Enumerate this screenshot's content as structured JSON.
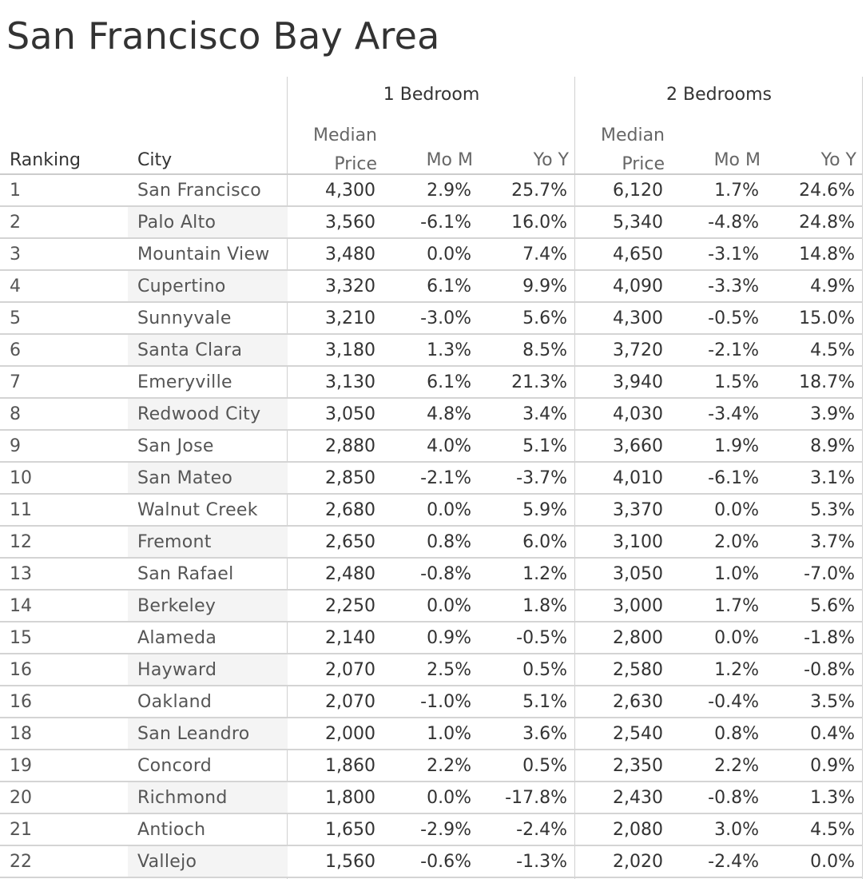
{
  "title": "San Francisco Bay Area",
  "headers": {
    "ranking": "Ranking",
    "city": "City",
    "group1": "1 Bedroom",
    "group2": "2 Bedrooms",
    "median_top": "Median",
    "median_bottom": "Price",
    "mom": "Mo M",
    "yoy": "Yo Y"
  },
  "chart_data": {
    "type": "table",
    "title": "San Francisco Bay Area",
    "columns": [
      "Ranking",
      "City",
      "1 Bedroom Median Price",
      "1 Bedroom Mo M",
      "1 Bedroom Yo Y",
      "2 Bedrooms Median Price",
      "2 Bedrooms Mo M",
      "2 Bedrooms Yo Y"
    ],
    "rows": [
      [
        "1",
        "San Francisco",
        "4,300",
        "2.9%",
        "25.7%",
        "6,120",
        "1.7%",
        "24.6%"
      ],
      [
        "2",
        "Palo Alto",
        "3,560",
        "-6.1%",
        "16.0%",
        "5,340",
        "-4.8%",
        "24.8%"
      ],
      [
        "3",
        "Mountain View",
        "3,480",
        "0.0%",
        "7.4%",
        "4,650",
        "-3.1%",
        "14.8%"
      ],
      [
        "4",
        "Cupertino",
        "3,320",
        "6.1%",
        "9.9%",
        "4,090",
        "-3.3%",
        "4.9%"
      ],
      [
        "5",
        "Sunnyvale",
        "3,210",
        "-3.0%",
        "5.6%",
        "4,300",
        "-0.5%",
        "15.0%"
      ],
      [
        "6",
        "Santa Clara",
        "3,180",
        "1.3%",
        "8.5%",
        "3,720",
        "-2.1%",
        "4.5%"
      ],
      [
        "7",
        "Emeryville",
        "3,130",
        "6.1%",
        "21.3%",
        "3,940",
        "1.5%",
        "18.7%"
      ],
      [
        "8",
        "Redwood City",
        "3,050",
        "4.8%",
        "3.4%",
        "4,030",
        "-3.4%",
        "3.9%"
      ],
      [
        "9",
        "San Jose",
        "2,880",
        "4.0%",
        "5.1%",
        "3,660",
        "1.9%",
        "8.9%"
      ],
      [
        "10",
        "San Mateo",
        "2,850",
        "-2.1%",
        "-3.7%",
        "4,010",
        "-6.1%",
        "3.1%"
      ],
      [
        "11",
        "Walnut Creek",
        "2,680",
        "0.0%",
        "5.9%",
        "3,370",
        "0.0%",
        "5.3%"
      ],
      [
        "12",
        "Fremont",
        "2,650",
        "0.8%",
        "6.0%",
        "3,100",
        "2.0%",
        "3.7%"
      ],
      [
        "13",
        "San Rafael",
        "2,480",
        "-0.8%",
        "1.2%",
        "3,050",
        "1.0%",
        "-7.0%"
      ],
      [
        "14",
        "Berkeley",
        "2,250",
        "0.0%",
        "1.8%",
        "3,000",
        "1.7%",
        "5.6%"
      ],
      [
        "15",
        "Alameda",
        "2,140",
        "0.9%",
        "-0.5%",
        "2,800",
        "0.0%",
        "-1.8%"
      ],
      [
        "16",
        "Hayward",
        "2,070",
        "2.5%",
        "0.5%",
        "2,580",
        "1.2%",
        "-0.8%"
      ],
      [
        "16",
        "Oakland",
        "2,070",
        "-1.0%",
        "5.1%",
        "2,630",
        "-0.4%",
        "3.5%"
      ],
      [
        "18",
        "San Leandro",
        "2,000",
        "1.0%",
        "3.6%",
        "2,540",
        "0.8%",
        "0.4%"
      ],
      [
        "19",
        "Concord",
        "1,860",
        "2.2%",
        "0.5%",
        "2,350",
        "2.2%",
        "0.9%"
      ],
      [
        "20",
        "Richmond",
        "1,800",
        "0.0%",
        "-17.8%",
        "2,430",
        "-0.8%",
        "1.3%"
      ],
      [
        "21",
        "Antioch",
        "1,650",
        "-2.9%",
        "-2.4%",
        "2,080",
        "3.0%",
        "4.5%"
      ],
      [
        "22",
        "Vallejo",
        "1,560",
        "-0.6%",
        "-1.3%",
        "2,020",
        "-2.4%",
        "0.0%"
      ]
    ]
  },
  "colors": {
    "text": "#333333",
    "muted_text": "#666666",
    "grid": "#d4d4d4",
    "city_shade": "#f4f4f4"
  }
}
